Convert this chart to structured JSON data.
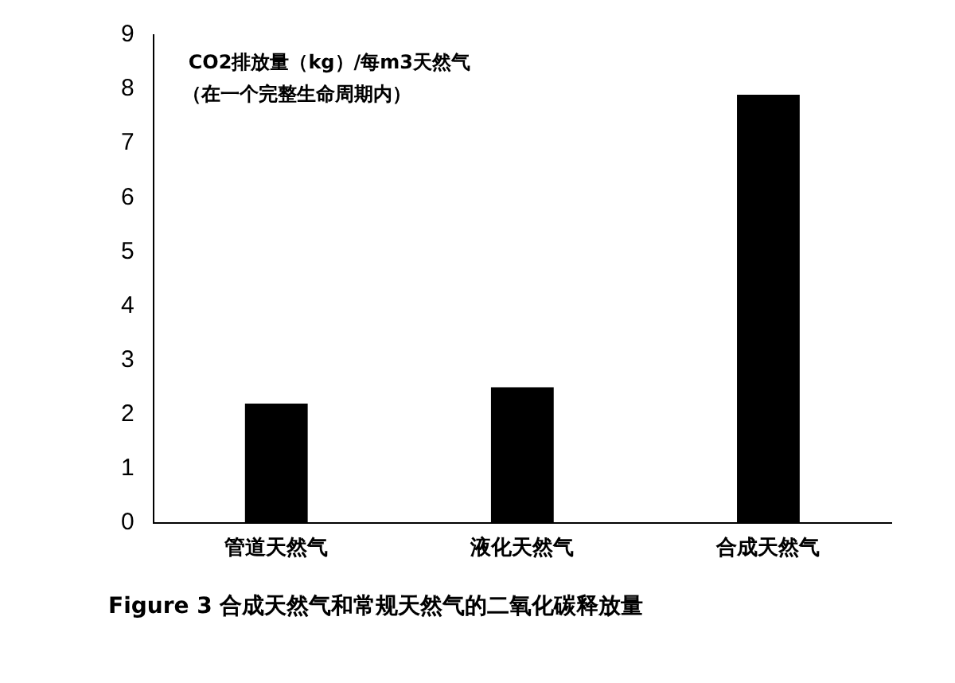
{
  "chart_data": {
    "type": "bar",
    "title": "CO2排放量（kg）/每m3天然气",
    "subtitle": "（在一个完整生命周期内）",
    "categories": [
      "管道天然气",
      "液化天然气",
      "合成天然气"
    ],
    "values": [
      2.2,
      2.5,
      7.9
    ],
    "color": "#000000",
    "ylim": [
      0,
      9
    ],
    "yticks": [
      0,
      1,
      2,
      3,
      4,
      5,
      6,
      7,
      8,
      9
    ],
    "grid": false,
    "legend": false,
    "annotations": [
      "Figure 3  合成天然气和常规天然气的二氧化碳释放量"
    ]
  }
}
